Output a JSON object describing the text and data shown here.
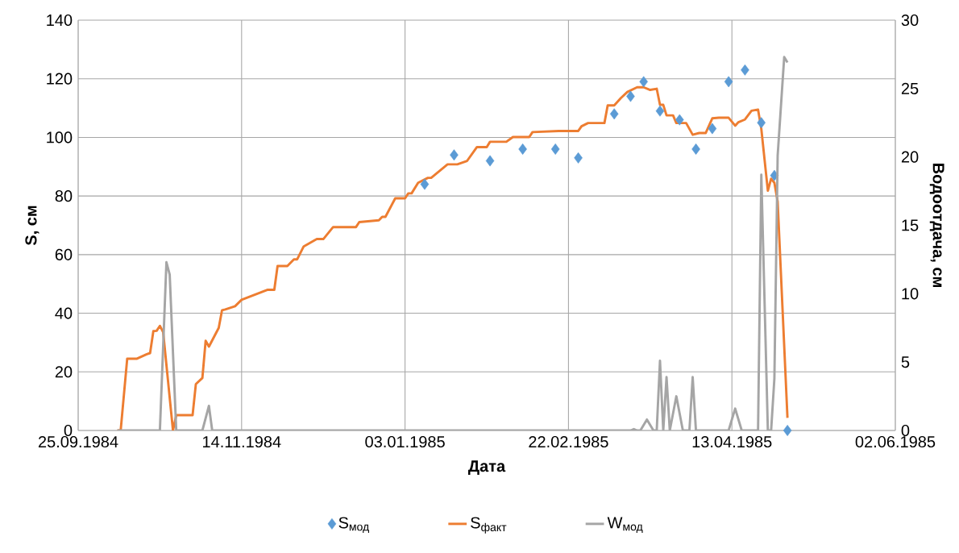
{
  "chart_data": {
    "type": "line",
    "xlabel": "Дата",
    "ylabel": "S, см",
    "y2label": "Водоотдача, см",
    "xlim": [
      "1984-09-25",
      "1985-06-02"
    ],
    "xticks": [
      {
        "value": "1984-09-25",
        "label": "25.09.1984"
      },
      {
        "value": "1984-11-14",
        "label": "14.11.1984"
      },
      {
        "value": "1985-01-03",
        "label": "03.01.1985"
      },
      {
        "value": "1985-02-22",
        "label": "22.02.1985"
      },
      {
        "value": "1985-04-13",
        "label": "13.04.1985"
      },
      {
        "value": "1985-06-02",
        "label": "02.06.1985"
      }
    ],
    "ylim": [
      0,
      140
    ],
    "yticks": [
      0,
      20,
      40,
      60,
      80,
      100,
      120,
      140
    ],
    "y2lim": [
      0,
      30
    ],
    "y2ticks": [
      0,
      5,
      10,
      15,
      20,
      25,
      30
    ],
    "grid": true,
    "legend": "bottom",
    "series": [
      {
        "name": "S$_{мод}$",
        "type": "scatter",
        "marker": "diamond",
        "color": "#5b9bd5",
        "x": [
          "1985-01-09",
          "1985-01-18",
          "1985-01-29",
          "1985-02-08",
          "1985-02-18",
          "1985-02-25",
          "1985-03-08",
          "1985-03-13",
          "1985-03-17",
          "1985-03-22",
          "1985-03-28",
          "1985-04-02",
          "1985-04-07",
          "1985-04-12",
          "1985-04-17",
          "1985-04-22",
          "1985-04-26",
          "1985-04-30"
        ],
        "values": [
          84,
          94,
          92,
          96,
          96,
          93,
          108,
          114,
          119,
          109,
          106,
          96,
          103,
          119,
          123,
          105,
          87,
          0
        ]
      },
      {
        "name": "S$_{факт}$",
        "color": "#ed7d31",
        "x": [
          "1984-10-07",
          "1984-10-08",
          "1984-10-10",
          "1984-10-13",
          "1984-10-16",
          "1984-10-17",
          "1984-10-18",
          "1984-10-19",
          "1984-10-20",
          "1984-10-21",
          "1984-10-24",
          "1984-10-25",
          "1984-10-30",
          "1984-10-31",
          "1984-11-02",
          "1984-11-03",
          "1984-11-04",
          "1984-11-07",
          "1984-11-08",
          "1984-11-09",
          "1984-11-12",
          "1984-11-14",
          "1984-11-22",
          "1984-11-24",
          "1984-11-25",
          "1984-11-28",
          "1984-11-30",
          "1984-12-01",
          "1984-12-03",
          "1984-12-07",
          "1984-12-09",
          "1984-12-12",
          "1984-12-19",
          "1984-12-20",
          "1984-12-26",
          "1984-12-27",
          "1984-12-28",
          "1984-12-31",
          "1985-01-03",
          "1985-01-04",
          "1985-01-05",
          "1985-01-07",
          "1985-01-10",
          "1985-01-11",
          "1985-01-16",
          "1985-01-19",
          "1985-01-22",
          "1985-01-25",
          "1985-01-28",
          "1985-01-29",
          "1985-02-03",
          "1985-02-05",
          "1985-02-10",
          "1985-02-11",
          "1985-02-19",
          "1985-02-25",
          "1985-02-26",
          "1985-02-28",
          "1985-03-05",
          "1985-03-06",
          "1985-03-08",
          "1985-03-10",
          "1985-03-12",
          "1985-03-15",
          "1985-03-17",
          "1985-03-19",
          "1985-03-21",
          "1985-03-22",
          "1985-03-23",
          "1985-03-24",
          "1985-03-26",
          "1985-03-27",
          "1985-03-30",
          "1985-04-01",
          "1985-04-03",
          "1985-04-05",
          "1985-04-07",
          "1985-04-09",
          "1985-04-12",
          "1985-04-14",
          "1985-04-15",
          "1985-04-17",
          "1985-04-19",
          "1985-04-21",
          "1985-04-22",
          "1985-04-24",
          "1985-04-25",
          "1985-04-26",
          "1985-04-27",
          "1985-04-30"
        ],
        "values": [
          0,
          0,
          24.5,
          24.5,
          26,
          26.4,
          33.9,
          34,
          35.7,
          33.5,
          0,
          5.2,
          5.2,
          15.8,
          17.9,
          30.6,
          28.6,
          35,
          41,
          41.3,
          42.4,
          44.6,
          48,
          48,
          56.1,
          56.1,
          58.4,
          58.4,
          62.8,
          65.3,
          65.3,
          69.4,
          69.4,
          71.1,
          71.7,
          72.9,
          72.9,
          79.2,
          79.2,
          80.9,
          80.9,
          84.5,
          86.2,
          86.2,
          90.8,
          90.8,
          92,
          96.7,
          96.7,
          98.5,
          98.5,
          100.1,
          100.1,
          101.8,
          102.2,
          102.2,
          103.8,
          104.9,
          104.9,
          110.9,
          110.9,
          113.4,
          115.5,
          117.1,
          117.1,
          116.2,
          116.6,
          111.1,
          111.1,
          107.5,
          107.5,
          104.9,
          104.9,
          100.9,
          101.5,
          101.5,
          106.5,
          106.7,
          106.7,
          104,
          105.2,
          106.1,
          109.1,
          109.5,
          102.9,
          81.8,
          85.9,
          84.5,
          78.1,
          4.3
        ]
      },
      {
        "name": "W$_{мод}$",
        "axis": "y2",
        "color": "#a5a5a5",
        "x": [
          "1984-10-07",
          "1984-10-20",
          "1984-10-22",
          "1984-10-23",
          "1984-10-25",
          "1984-11-02",
          "1984-11-04",
          "1984-11-05",
          "1985-03-13",
          "1985-03-14",
          "1985-03-15",
          "1985-03-16",
          "1985-03-18",
          "1985-03-20",
          "1985-03-21",
          "1985-03-22",
          "1985-03-23",
          "1985-03-24",
          "1985-03-25",
          "1985-03-27",
          "1985-03-29",
          "1985-03-31",
          "1985-04-01",
          "1985-04-02",
          "1985-04-12",
          "1985-04-14",
          "1985-04-16",
          "1985-04-21",
          "1985-04-22",
          "1985-04-24",
          "1985-04-25",
          "1985-04-26",
          "1985-04-27",
          "1985-04-29",
          "1985-04-30"
        ],
        "values": [
          0,
          0,
          12.3,
          11.4,
          0,
          0,
          1.8,
          0,
          0,
          0.1,
          0,
          0,
          0.8,
          0,
          0,
          5.1,
          0,
          3.9,
          0,
          2.5,
          0,
          0,
          3.9,
          0,
          0,
          1.6,
          0,
          0,
          18.7,
          0,
          0,
          3.8,
          20.1,
          27.3,
          26.9
        ]
      }
    ]
  }
}
